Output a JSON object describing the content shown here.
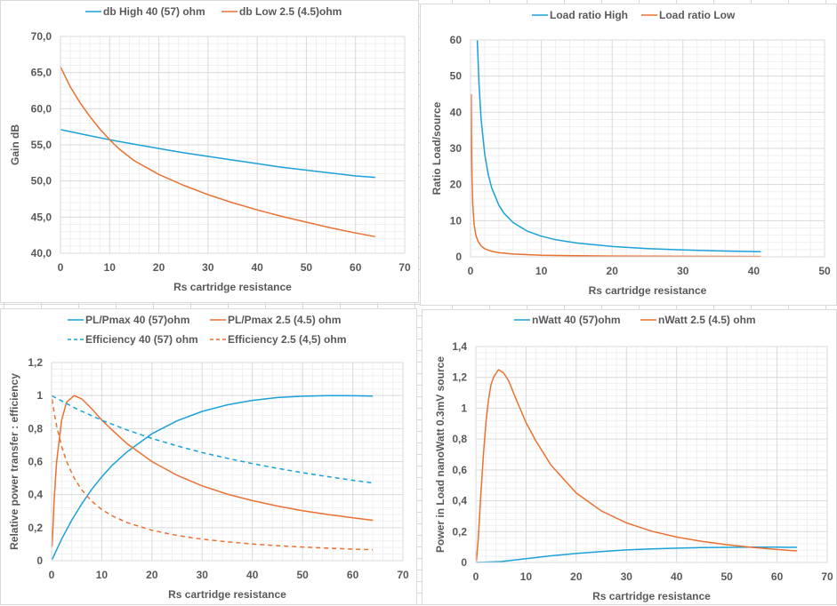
{
  "colors": {
    "blue": "#1ba1d9",
    "orange": "#e97132",
    "text": "#595959",
    "grid_major": "#d9d9d9",
    "grid_minor": "#efefef"
  },
  "chart_data": [
    {
      "id": "gain",
      "type": "line",
      "title": "",
      "xlabel": "Rs cartridge resistance",
      "ylabel": "Gain dB",
      "xlim": [
        0,
        70
      ],
      "ylim": [
        40,
        70
      ],
      "x_ticks": [
        "0",
        "10",
        "20",
        "30",
        "40",
        "50",
        "60",
        "70"
      ],
      "y_ticks": [
        "40,0",
        "45,0",
        "50,0",
        "55,0",
        "60,0",
        "65,0",
        "70,0"
      ],
      "grid": true,
      "legend": "top-center",
      "series": [
        {
          "name": "db High 40 (57) ohm",
          "color": "blue",
          "style": "solid",
          "x": [
            0,
            5,
            10,
            15,
            20,
            25,
            30,
            35,
            40,
            45,
            50,
            55,
            60,
            64
          ],
          "y": [
            57.1,
            56.4,
            55.7,
            55.1,
            54.5,
            53.9,
            53.4,
            52.9,
            52.4,
            51.9,
            51.5,
            51.1,
            50.7,
            50.5
          ]
        },
        {
          "name": "db Low 2.5 (4.5)ohm",
          "color": "orange",
          "style": "solid",
          "x": [
            0,
            2,
            4,
            6,
            8,
            10,
            12,
            15,
            20,
            25,
            30,
            35,
            40,
            45,
            50,
            55,
            60,
            64
          ],
          "y": [
            65.8,
            63.0,
            60.8,
            58.9,
            57.2,
            55.7,
            54.4,
            52.8,
            50.9,
            49.4,
            48.1,
            47.0,
            46.0,
            45.1,
            44.3,
            43.5,
            42.8,
            42.3
          ]
        }
      ]
    },
    {
      "id": "ratio",
      "type": "line",
      "title": "",
      "xlabel": "Rs cartridge resistance",
      "ylabel": "Ratio Load/source",
      "xlim": [
        0,
        50
      ],
      "ylim": [
        0,
        60
      ],
      "x_ticks": [
        "0",
        "10",
        "20",
        "30",
        "40",
        "50"
      ],
      "y_ticks": [
        "0",
        "10",
        "20",
        "30",
        "40",
        "50",
        "60"
      ],
      "grid": true,
      "legend": "top-center",
      "series": [
        {
          "name": "Load ratio High",
          "color": "blue",
          "style": "solid",
          "x": [
            0.95,
            1.2,
            1.5,
            2,
            2.5,
            3,
            4,
            4.75,
            6,
            8,
            10,
            12,
            15,
            20,
            25,
            30,
            35,
            41
          ],
          "y": [
            60,
            47.5,
            38,
            28.5,
            22.8,
            19,
            14.3,
            12,
            9.5,
            7.1,
            5.7,
            4.75,
            3.8,
            2.85,
            2.28,
            1.9,
            1.63,
            1.39
          ]
        },
        {
          "name": "Load ratio Low",
          "color": "orange",
          "style": "solid",
          "x": [
            0.1,
            0.15,
            0.2,
            0.3,
            0.5,
            0.75,
            1,
            1.5,
            2,
            3,
            4,
            6,
            10,
            15,
            20,
            30,
            41
          ],
          "y": [
            45,
            30,
            22.5,
            15,
            9,
            6,
            4.5,
            3,
            2.25,
            1.5,
            1.13,
            0.75,
            0.45,
            0.3,
            0.23,
            0.15,
            0.11
          ]
        }
      ]
    },
    {
      "id": "power-transfer",
      "type": "line",
      "title": "",
      "xlabel": "Rs cartridge resistance",
      "ylabel": "Relative power transfer : efficiency",
      "xlim": [
        0,
        70
      ],
      "ylim": [
        0,
        1.2
      ],
      "x_ticks": [
        "0",
        "10",
        "20",
        "30",
        "40",
        "50",
        "60",
        "70"
      ],
      "y_ticks": [
        "0",
        "0,2",
        "0,4",
        "0,6",
        "0,8",
        "1",
        "1,2"
      ],
      "grid": true,
      "legend": "top-center",
      "series": [
        {
          "name": "PL/Pmax 40 (57)ohm",
          "color": "blue",
          "style": "solid",
          "x": [
            0.1,
            2,
            4,
            6,
            8,
            10,
            12,
            15,
            20,
            25,
            30,
            35,
            40,
            45,
            50,
            55,
            60,
            64
          ],
          "y": [
            0.007,
            0.131,
            0.245,
            0.344,
            0.432,
            0.508,
            0.575,
            0.658,
            0.769,
            0.847,
            0.904,
            0.944,
            0.971,
            0.988,
            0.996,
            1.0,
            0.999,
            0.997
          ]
        },
        {
          "name": "PL/Pmax 2.5 (4.5) ohm",
          "color": "orange",
          "style": "solid",
          "x": [
            0.1,
            0.5,
            1,
            2,
            3,
            4.5,
            6,
            8,
            10,
            12,
            15,
            20,
            25,
            30,
            35,
            40,
            45,
            50,
            55,
            60,
            64
          ],
          "y": [
            0.085,
            0.36,
            0.595,
            0.852,
            0.96,
            1.0,
            0.98,
            0.92,
            0.852,
            0.793,
            0.71,
            0.6,
            0.517,
            0.453,
            0.403,
            0.364,
            0.331,
            0.303,
            0.28,
            0.26,
            0.245
          ]
        },
        {
          "name": "Efficiency 40 (57) ohm",
          "color": "blue",
          "style": "dashed",
          "x": [
            0.1,
            5,
            10,
            15,
            20,
            25,
            30,
            35,
            40,
            45,
            50,
            55,
            60,
            64
          ],
          "y": [
            0.998,
            0.919,
            0.851,
            0.792,
            0.74,
            0.695,
            0.655,
            0.62,
            0.588,
            0.559,
            0.533,
            0.509,
            0.487,
            0.471
          ]
        },
        {
          "name": "Efficiency 2.5 (4,5) ohm",
          "color": "orange",
          "style": "dashed",
          "x": [
            0.1,
            0.5,
            1,
            2,
            3,
            4.5,
            6,
            8,
            10,
            12,
            15,
            20,
            25,
            30,
            35,
            40,
            45,
            50,
            55,
            60,
            64
          ],
          "y": [
            0.978,
            0.9,
            0.818,
            0.692,
            0.6,
            0.5,
            0.429,
            0.36,
            0.31,
            0.273,
            0.231,
            0.184,
            0.153,
            0.13,
            0.114,
            0.101,
            0.091,
            0.083,
            0.076,
            0.07,
            0.066
          ]
        }
      ]
    },
    {
      "id": "nwatt",
      "type": "line",
      "title": "",
      "xlabel": "Rs cartridge resistance",
      "ylabel": "Power in Load nanoWatt 0.3mV source",
      "xlim": [
        0,
        70
      ],
      "ylim": [
        0,
        1.4
      ],
      "x_ticks": [
        "0",
        "10",
        "20",
        "30",
        "40",
        "50",
        "60",
        "70"
      ],
      "y_ticks": [
        "0",
        "0,2",
        "0,4",
        "0,6",
        "0,8",
        "1",
        "1,2",
        "1,4"
      ],
      "grid": true,
      "legend": "top-center",
      "series": [
        {
          "name": "nWatt 40 (57)ohm",
          "color": "blue",
          "style": "solid",
          "x": [
            0.1,
            5,
            10,
            15,
            20,
            25,
            30,
            35,
            40,
            45,
            50,
            55,
            60,
            64
          ],
          "y": [
            0.0,
            0.006,
            0.025,
            0.043,
            0.058,
            0.071,
            0.081,
            0.088,
            0.093,
            0.096,
            0.098,
            0.099,
            0.099,
            0.098
          ]
        },
        {
          "name": "nWatt 2.5 (4.5) ohm",
          "color": "orange",
          "style": "solid",
          "x": [
            0.1,
            0.5,
            1,
            1.5,
            2,
            2.5,
            3,
            3.5,
            4.5,
            5.5,
            6.5,
            8,
            10,
            12,
            15,
            20,
            25,
            30,
            35,
            40,
            45,
            50,
            55,
            60,
            64
          ],
          "y": [
            0.009,
            0.162,
            0.443,
            0.7,
            0.907,
            1.05,
            1.15,
            1.2,
            1.25,
            1.23,
            1.18,
            1.06,
            0.907,
            0.786,
            0.63,
            0.45,
            0.334,
            0.257,
            0.203,
            0.165,
            0.137,
            0.115,
            0.098,
            0.084,
            0.075
          ]
        }
      ]
    }
  ]
}
